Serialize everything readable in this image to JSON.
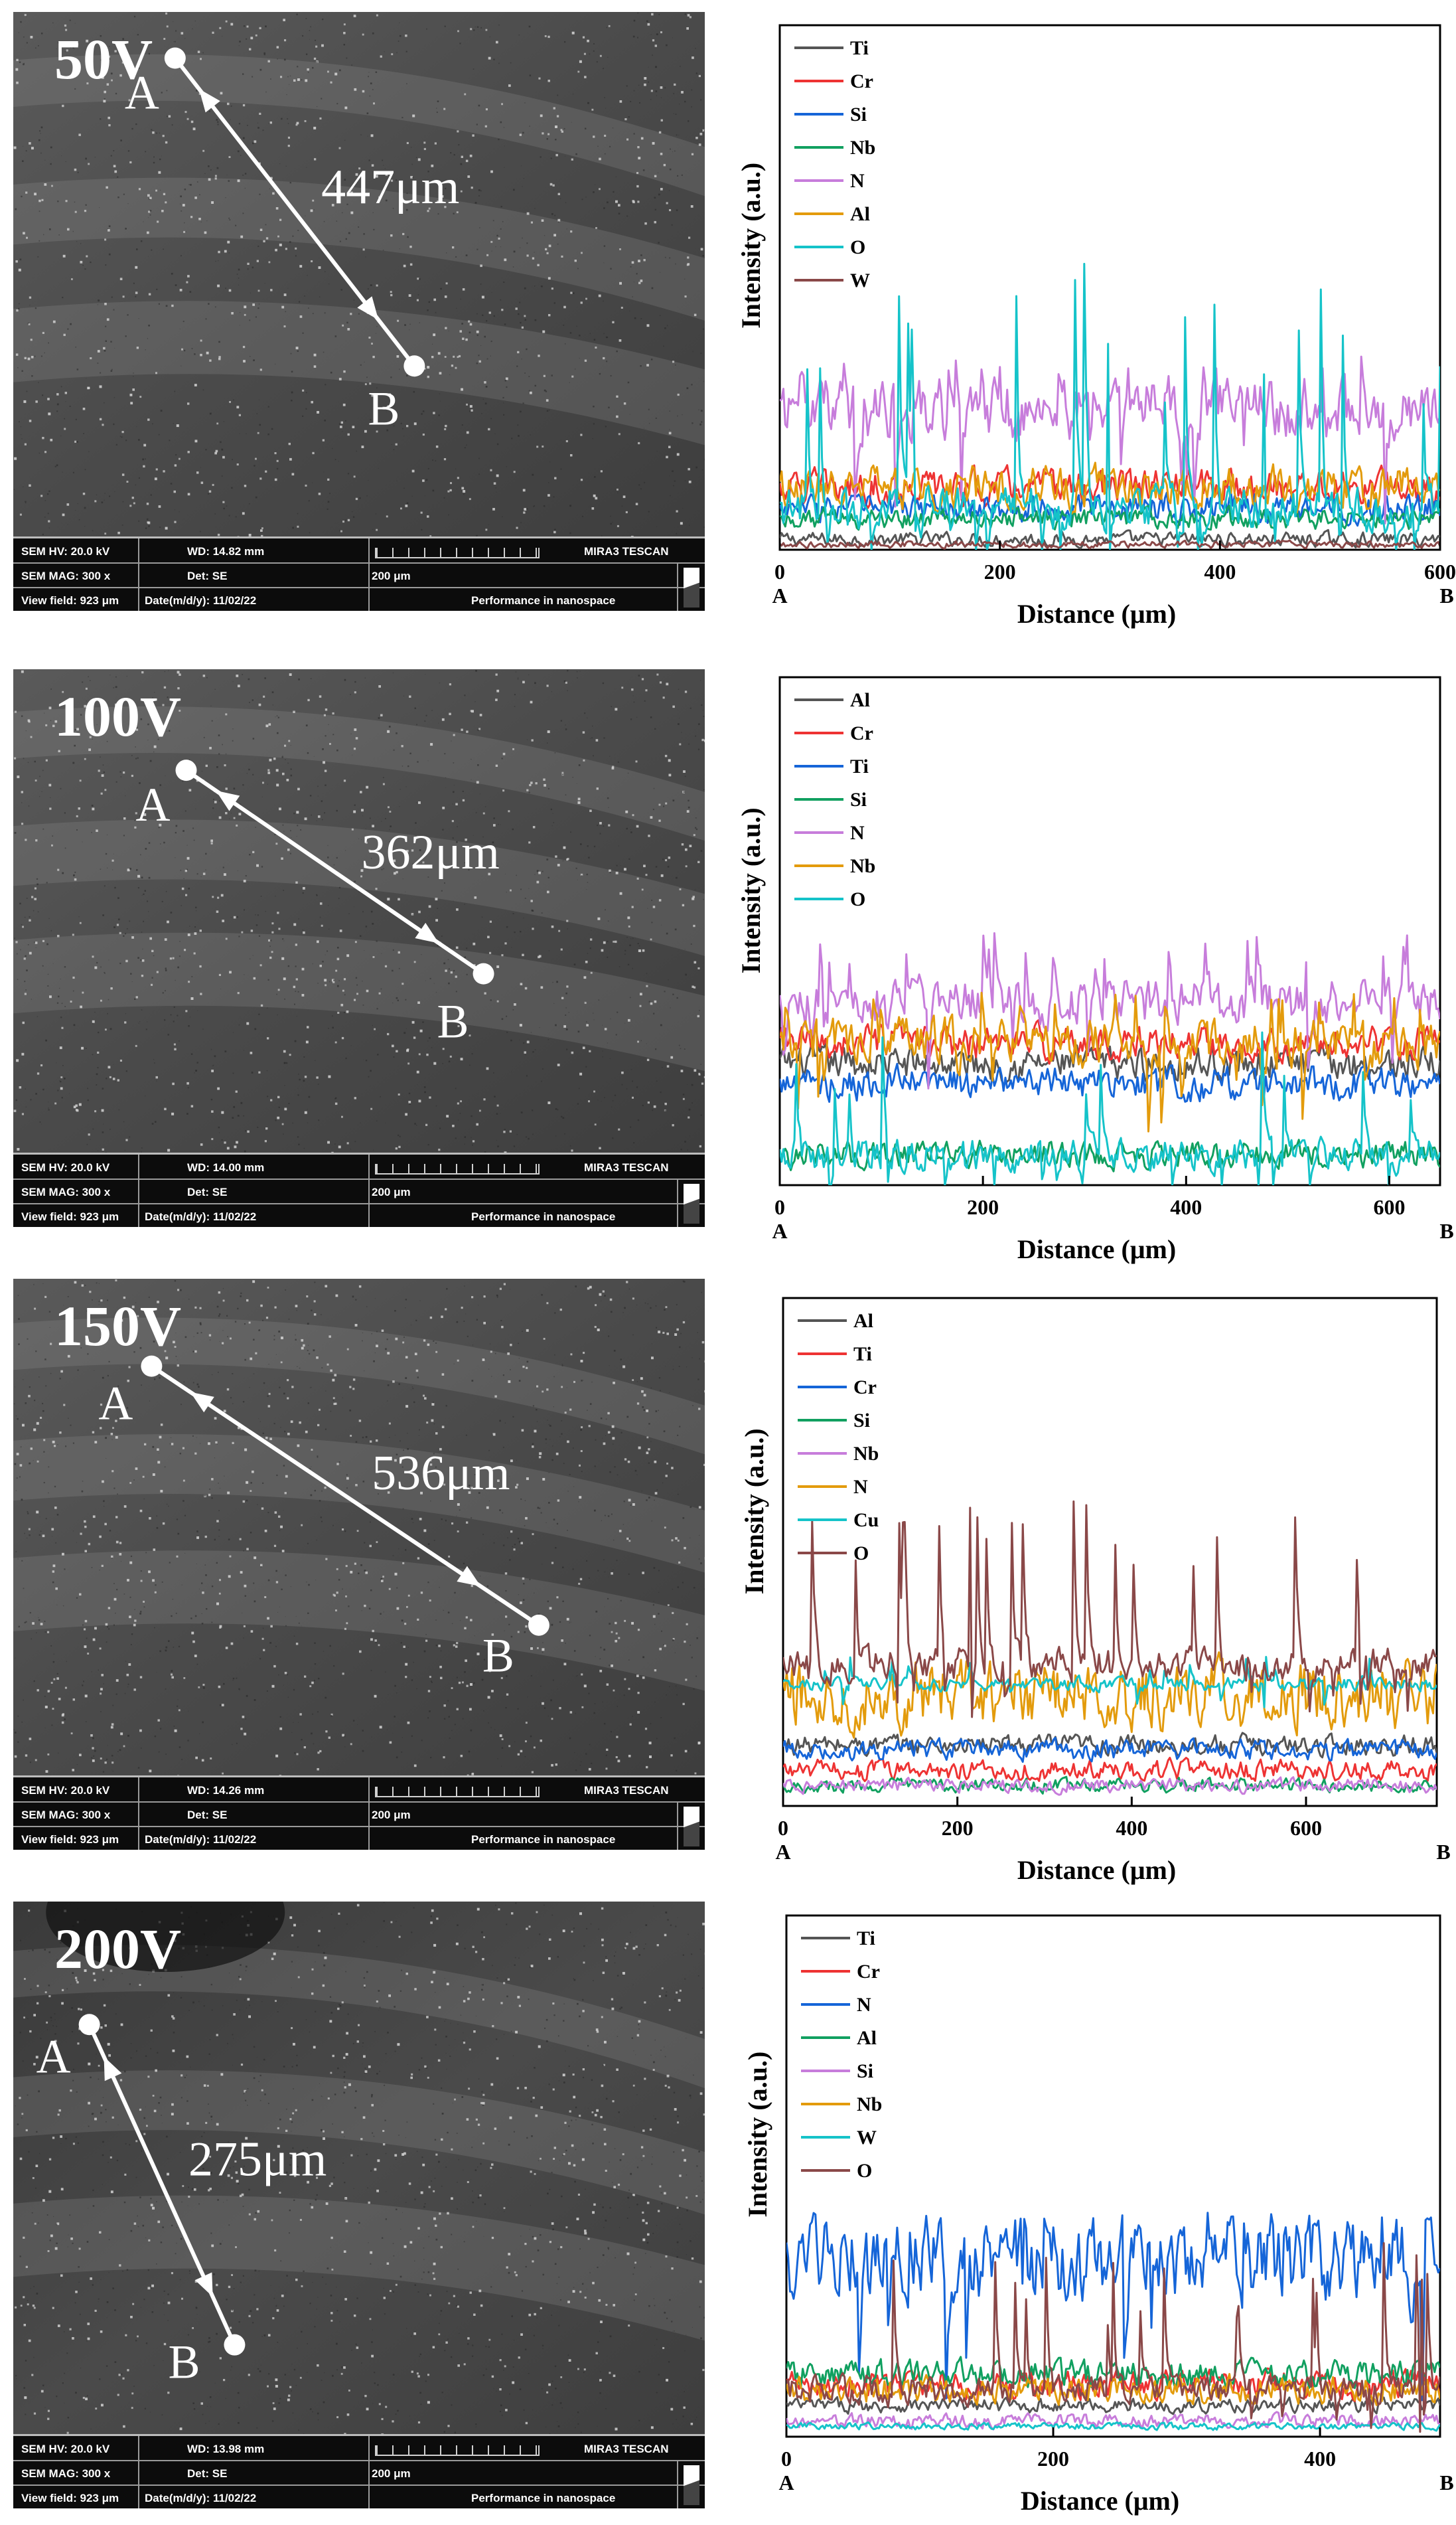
{
  "figure": {
    "panels": [
      {
        "id": "p50",
        "sem": {
          "voltage_label": "50V",
          "point_a": "A",
          "point_b": "B",
          "length_label": "447μm",
          "info": {
            "hv": "SEM HV: 20.0 kV",
            "wd": "WD: 14.82 mm",
            "mag": "SEM MAG: 300 x",
            "det": "Det: SE",
            "scale": "200 μm",
            "view": "View field: 923 μm",
            "date": "Date(m/d/y): 11/02/22",
            "brand": "MIRA3 TESCAN",
            "slogan": "Performance in nanospace"
          }
        }
      },
      {
        "id": "p100",
        "sem": {
          "voltage_label": "100V",
          "point_a": "A",
          "point_b": "B",
          "length_label": "362μm",
          "info": {
            "hv": "SEM HV: 20.0 kV",
            "wd": "WD: 14.00 mm",
            "mag": "SEM MAG: 300 x",
            "det": "Det: SE",
            "scale": "200 μm",
            "view": "View field: 923 μm",
            "date": "Date(m/d/y): 11/02/22",
            "brand": "MIRA3 TESCAN",
            "slogan": "Performance in nanospace"
          }
        }
      },
      {
        "id": "p150",
        "sem": {
          "voltage_label": "150V",
          "point_a": "A",
          "point_b": "B",
          "length_label": "536μm",
          "info": {
            "hv": "SEM HV: 20.0 kV",
            "wd": "WD: 14.26 mm",
            "mag": "SEM MAG: 300 x",
            "det": "Det: SE",
            "scale": "200 μm",
            "view": "View field: 923 μm",
            "date": "Date(m/d/y): 11/02/22",
            "brand": "MIRA3 TESCAN",
            "slogan": "Performance in nanospace"
          }
        }
      },
      {
        "id": "p200",
        "sem": {
          "voltage_label": "200V",
          "point_a": "A",
          "point_b": "B",
          "length_label": "275μm",
          "info": {
            "hv": "SEM HV: 20.0 kV",
            "wd": "WD: 13.98 mm",
            "mag": "SEM MAG: 300 x",
            "det": "Det: SE",
            "scale": "200 μm",
            "view": "View field: 923 μm",
            "date": "Date(m/d/y): 11/02/22",
            "brand": "MIRA3 TESCAN",
            "slogan": "Performance in nanospace"
          }
        }
      }
    ]
  },
  "chart_data": [
    {
      "type": "line",
      "title": "",
      "xlabel": "Distance (μm)",
      "ylabel": "Intensity (a.u.)",
      "xlim": [
        0,
        600
      ],
      "ylim": [
        0,
        100
      ],
      "xticks": [
        0,
        200,
        400,
        600
      ],
      "x_start_label": "A",
      "x_end_label": "B",
      "legend_position": "top-left",
      "series": [
        {
          "name": "Ti",
          "color": "#555555",
          "baseline": 2,
          "amplitude": 2,
          "spike_max": 0
        },
        {
          "name": "Cr",
          "color": "#ee3333",
          "baseline": 12,
          "amplitude": 5,
          "spike_max": 0
        },
        {
          "name": "Si",
          "color": "#1565d8",
          "baseline": 8,
          "amplitude": 4,
          "spike_max": 0
        },
        {
          "name": "Nb",
          "color": "#11a060",
          "baseline": 6,
          "amplitude": 3,
          "spike_max": 0
        },
        {
          "name": "N",
          "color": "#c77ddb",
          "baseline": 27,
          "amplitude": 9,
          "spike_max": 10
        },
        {
          "name": "Al",
          "color": "#e39b0c",
          "baseline": 12,
          "amplitude": 6,
          "spike_max": 0
        },
        {
          "name": "O",
          "color": "#15c3c9",
          "baseline": 8,
          "amplitude": 6,
          "spike_max": 48
        },
        {
          "name": "W",
          "color": "#8a4848",
          "baseline": 1,
          "amplitude": 1,
          "spike_max": 0
        }
      ]
    },
    {
      "type": "line",
      "title": "",
      "xlabel": "Distance (μm)",
      "ylabel": "Intensity (a.u.)",
      "xlim": [
        0,
        650
      ],
      "ylim": [
        0,
        100
      ],
      "xticks": [
        0,
        200,
        400,
        600
      ],
      "x_start_label": "A",
      "x_end_label": "B",
      "legend_position": "top-left",
      "series": [
        {
          "name": "Al",
          "color": "#555555",
          "baseline": 24,
          "amplitude": 5,
          "spike_max": 0
        },
        {
          "name": "Cr",
          "color": "#ee3333",
          "baseline": 28,
          "amplitude": 5,
          "spike_max": 0
        },
        {
          "name": "Ti",
          "color": "#1565d8",
          "baseline": 20,
          "amplitude": 5,
          "spike_max": 0
        },
        {
          "name": "Si",
          "color": "#11a060",
          "baseline": 6,
          "amplitude": 4,
          "spike_max": 0
        },
        {
          "name": "N",
          "color": "#c77ddb",
          "baseline": 36,
          "amplitude": 7,
          "spike_max": 14
        },
        {
          "name": "Nb",
          "color": "#e39b0c",
          "baseline": 28,
          "amplitude": 7,
          "spike_max": 10
        },
        {
          "name": "O",
          "color": "#15c3c9",
          "baseline": 6,
          "amplitude": 5,
          "spike_max": 26
        }
      ]
    },
    {
      "type": "line",
      "title": "",
      "xlabel": "Distance (μm)",
      "ylabel": "Intensity (a.u.)",
      "xlim": [
        0,
        750
      ],
      "ylim": [
        0,
        100
      ],
      "xticks": [
        0,
        200,
        400,
        600
      ],
      "x_start_label": "A",
      "x_end_label": "B",
      "legend_position": "top-left",
      "series": [
        {
          "name": "Al",
          "color": "#555555",
          "baseline": 12,
          "amplitude": 3,
          "spike_max": 0
        },
        {
          "name": "Ti",
          "color": "#ee3333",
          "baseline": 7,
          "amplitude": 3,
          "spike_max": 0
        },
        {
          "name": "Cr",
          "color": "#1565d8",
          "baseline": 11,
          "amplitude": 3,
          "spike_max": 0
        },
        {
          "name": "Si",
          "color": "#11a060",
          "baseline": 4,
          "amplitude": 2,
          "spike_max": 0
        },
        {
          "name": "Nb",
          "color": "#c77ddb",
          "baseline": 4,
          "amplitude": 2,
          "spike_max": 0
        },
        {
          "name": "N",
          "color": "#e39b0c",
          "baseline": 22,
          "amplitude": 10,
          "spike_max": 0
        },
        {
          "name": "Cu",
          "color": "#15c3c9",
          "baseline": 24,
          "amplitude": 2,
          "spike_max": 6
        },
        {
          "name": "O",
          "color": "#8a4848",
          "baseline": 28,
          "amplitude": 5,
          "spike_max": 34
        }
      ]
    },
    {
      "type": "line",
      "title": "",
      "xlabel": "Distance (μm)",
      "ylabel": "Intensity (a.u.)",
      "xlim": [
        0,
        490
      ],
      "ylim": [
        0,
        100
      ],
      "xticks": [
        0,
        200,
        400
      ],
      "x_start_label": "A",
      "x_end_label": "B",
      "legend_position": "top-left",
      "series": [
        {
          "name": "Ti",
          "color": "#555555",
          "baseline": 6,
          "amplitude": 2,
          "spike_max": 0
        },
        {
          "name": "Cr",
          "color": "#ee3333",
          "baseline": 10,
          "amplitude": 4,
          "spike_max": 0
        },
        {
          "name": "N",
          "color": "#1565d8",
          "baseline": 34,
          "amplitude": 12,
          "spike_max": 10
        },
        {
          "name": "Al",
          "color": "#11a060",
          "baseline": 12,
          "amplitude": 4,
          "spike_max": 0
        },
        {
          "name": "Si",
          "color": "#c77ddb",
          "baseline": 3,
          "amplitude": 2,
          "spike_max": 0
        },
        {
          "name": "Nb",
          "color": "#e39b0c",
          "baseline": 9,
          "amplitude": 4,
          "spike_max": 0
        },
        {
          "name": "W",
          "color": "#15c3c9",
          "baseline": 2,
          "amplitude": 1,
          "spike_max": 0
        },
        {
          "name": "O",
          "color": "#8a4848",
          "baseline": 9,
          "amplitude": 4,
          "spike_max": 30
        }
      ]
    }
  ]
}
